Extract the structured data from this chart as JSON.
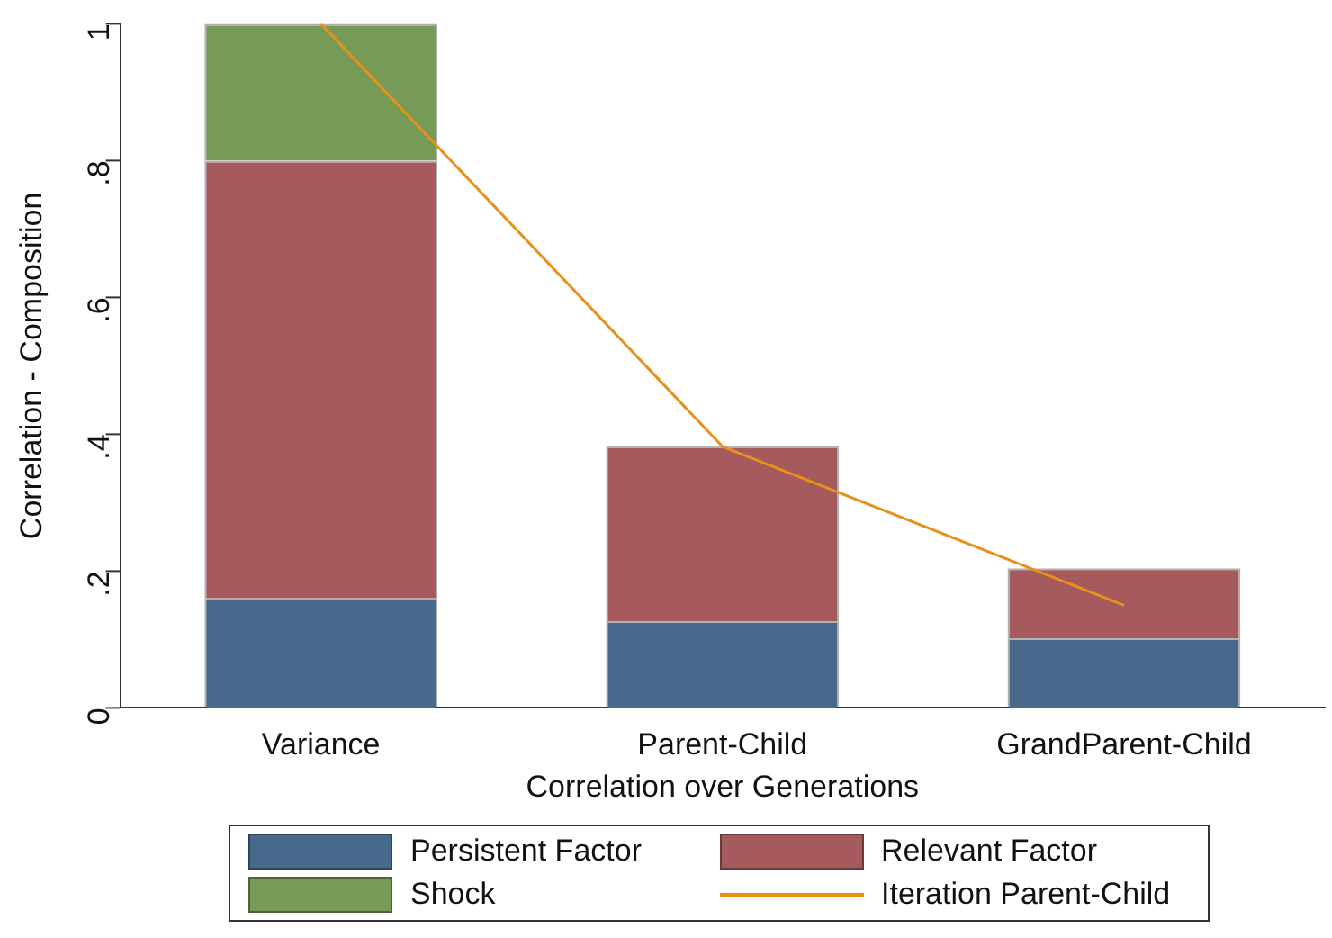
{
  "chart_data": {
    "type": "bar",
    "xlabel": "Correlation over Generations",
    "ylabel": "Correlation - Composition",
    "categories": [
      "Variance",
      "Parent-Child",
      "GrandParent-Child"
    ],
    "stacked": true,
    "ylim": [
      0,
      1
    ],
    "yticks": [
      0,
      {
        "value": 0.2,
        "label": ".2"
      },
      {
        "value": 0.4,
        "label": ".4"
      },
      {
        "value": 0.6,
        "label": ".6"
      },
      {
        "value": 0.8,
        "label": ".8"
      },
      {
        "value": 1,
        "label": "1"
      }
    ],
    "grid": false,
    "legend": "bottom",
    "series": [
      {
        "name": "Persistent Factor",
        "color": "#46698c",
        "values": [
          0.16,
          0.127,
          0.102
        ]
      },
      {
        "name": "Relevant Factor",
        "color": "#a55a5e",
        "values": [
          0.64,
          0.255,
          0.102
        ]
      },
      {
        "name": "Shock",
        "color": "#779a56",
        "values": [
          0.2,
          null,
          null
        ]
      },
      {
        "name": "Iteration Parent-Child",
        "type": "line",
        "color": "#e8901a",
        "values": [
          1,
          0.382,
          0.15
        ],
        "marker": "none"
      }
    ]
  }
}
